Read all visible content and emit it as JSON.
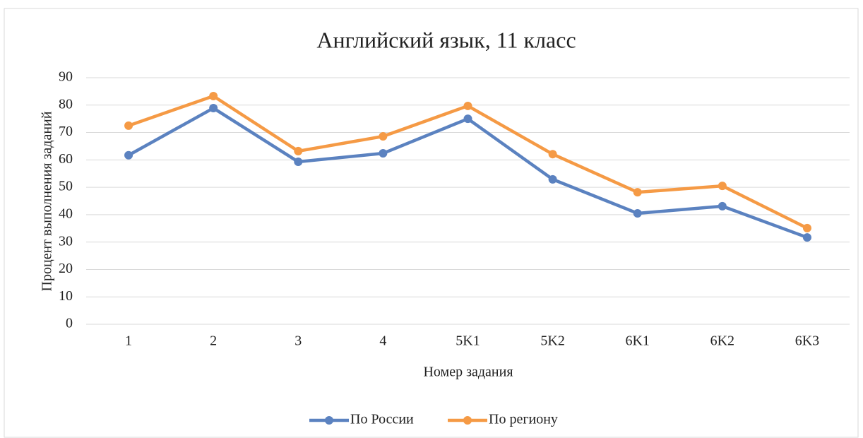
{
  "chart_data": {
    "type": "line",
    "title": "Английский язык, 11 класс",
    "x_label": "Номер задания",
    "y_label": "Процент выполнения заданий",
    "categories": [
      "1",
      "2",
      "3",
      "4",
      "5K1",
      "5K2",
      "6K1",
      "6K2",
      "6K3"
    ],
    "series": [
      {
        "name": "По России",
        "color": "#5b82c0",
        "values": [
          61.7,
          78.9,
          59.3,
          62.4,
          75.0,
          52.9,
          40.5,
          43.1,
          31.7
        ]
      },
      {
        "name": "По региону",
        "color": "#f59a45",
        "values": [
          72.5,
          83.3,
          63.2,
          68.6,
          79.7,
          62.1,
          48.2,
          50.5,
          35.1
        ]
      }
    ],
    "ylim": [
      0,
      90
    ],
    "yticks": [
      0,
      10,
      20,
      30,
      40,
      50,
      60,
      70,
      80,
      90
    ],
    "grid": true,
    "legend": "bottom"
  }
}
